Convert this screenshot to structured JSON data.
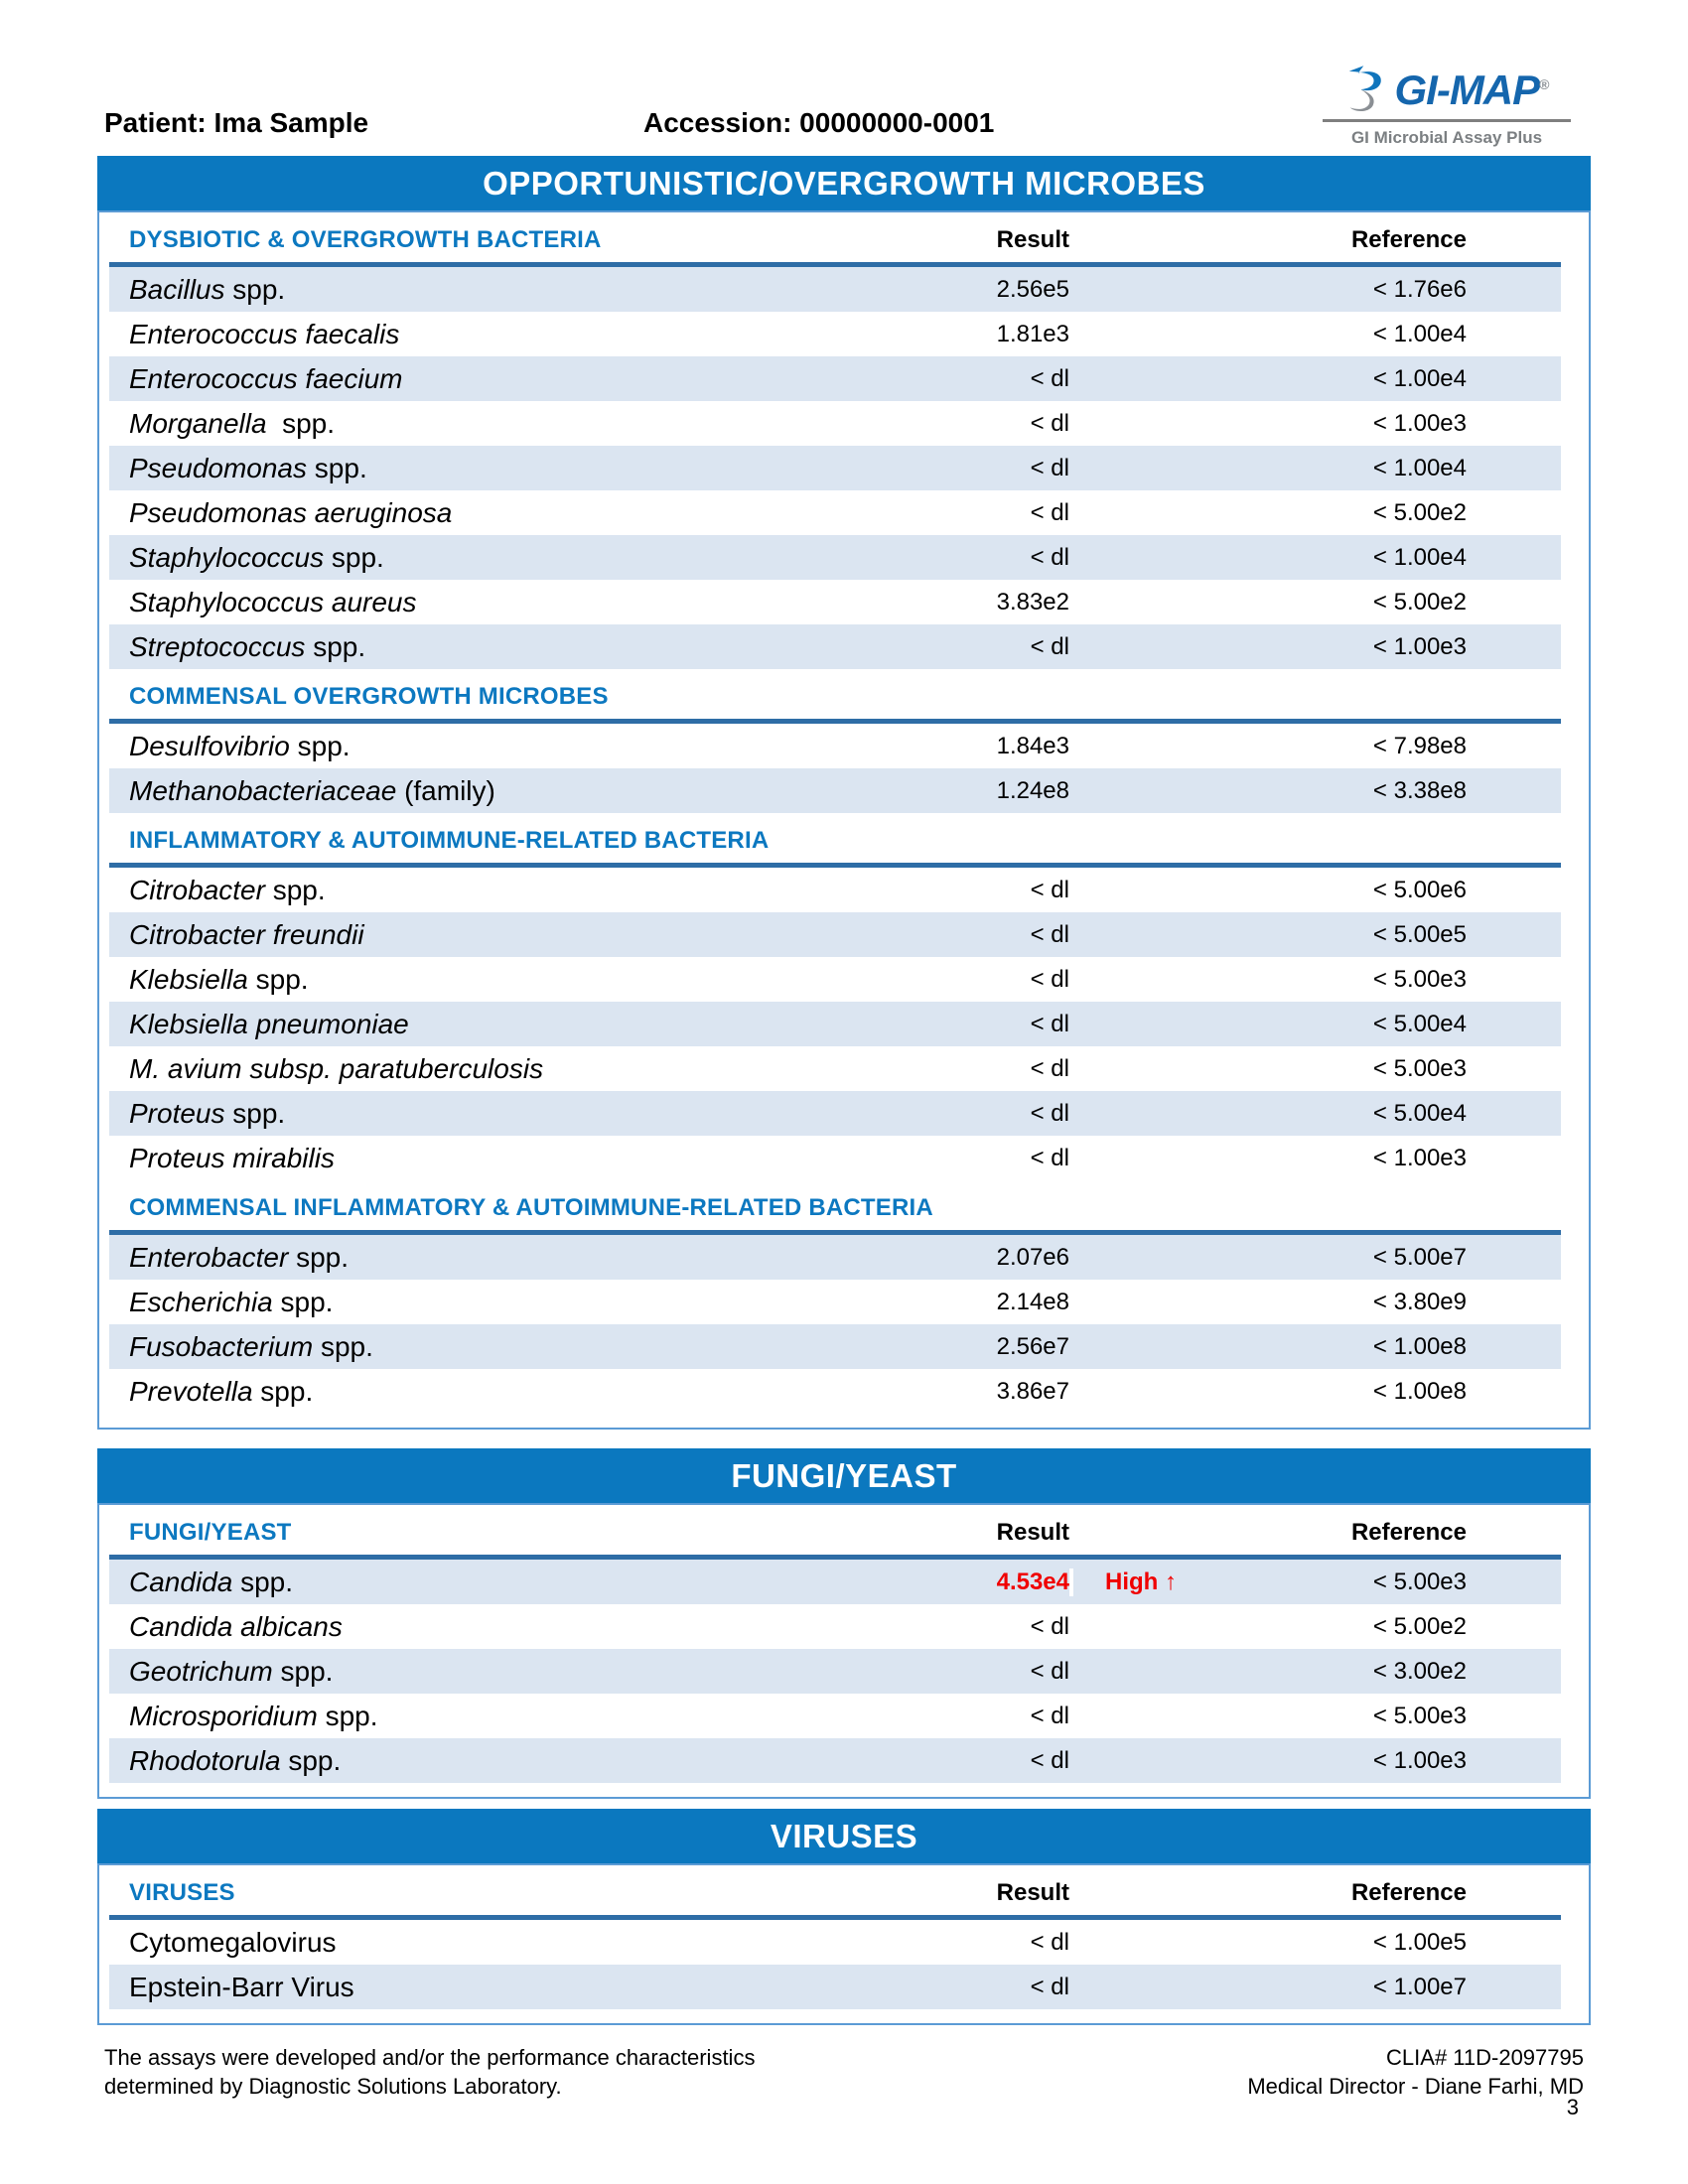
{
  "header": {
    "patient": "Patient: Ima Sample",
    "accession": "Accession: 00000000-0001"
  },
  "logo": {
    "brand": "GI-MAP",
    "reg": "®",
    "tagline": "GI Microbial Assay Plus"
  },
  "column_headers": {
    "result": "Result",
    "reference": "Reference"
  },
  "colors": {
    "banner_blue": "#0b78bf",
    "section_title_blue": "#0c78c0",
    "row_shade": "#dbe5f1",
    "divider_blue": "#2e6da6",
    "table_border_blue": "#5b9bd5",
    "flag_red": "#f00000",
    "logo_blue": "#1566ad",
    "logo_gray": "#7b7f82"
  },
  "sections": [
    {
      "id": "opportunistic",
      "banner": "OPPORTUNISTIC/OVERGROWTH MICROBES",
      "groups": [
        {
          "title": "DYSBIOTIC & OVERGROWTH BACTERIA",
          "show_columns": true,
          "rows": [
            {
              "italic": "Bacillus",
              "roman": " spp.",
              "result": "2.56e5",
              "flag": "",
              "reference": "< 1.76e6",
              "shaded": true
            },
            {
              "italic": "Enterococcus faecalis",
              "roman": "",
              "result": "1.81e3",
              "flag": "",
              "reference": "< 1.00e4",
              "shaded": false
            },
            {
              "italic": "Enterococcus faecium",
              "roman": "",
              "result": "< dl",
              "flag": "",
              "reference": "< 1.00e4",
              "shaded": true
            },
            {
              "italic": "Morganella",
              "roman": "  spp.",
              "result": "< dl",
              "flag": "",
              "reference": "< 1.00e3",
              "shaded": false
            },
            {
              "italic": "Pseudomonas",
              "roman": " spp.",
              "result": "< dl",
              "flag": "",
              "reference": "< 1.00e4",
              "shaded": true
            },
            {
              "italic": "Pseudomonas aeruginosa",
              "roman": "",
              "result": "< dl",
              "flag": "",
              "reference": "< 5.00e2",
              "shaded": false
            },
            {
              "italic": "Staphylococcus",
              "roman": " spp.",
              "result": "< dl",
              "flag": "",
              "reference": "< 1.00e4",
              "shaded": true
            },
            {
              "italic": "Staphylococcus aureus",
              "roman": "",
              "result": "3.83e2",
              "flag": "",
              "reference": "< 5.00e2",
              "shaded": false
            },
            {
              "italic": "Streptococcus",
              "roman": " spp.",
              "result": "< dl",
              "flag": "",
              "reference": "< 1.00e3",
              "shaded": true
            }
          ]
        },
        {
          "title": "COMMENSAL OVERGROWTH MICROBES",
          "show_columns": false,
          "rows": [
            {
              "italic": "Desulfovibrio",
              "roman": " spp.",
              "result": "1.84e3",
              "flag": "",
              "reference": "< 7.98e8",
              "shaded": false
            },
            {
              "italic": "Methanobacteriaceae",
              "roman": " (family)",
              "result": "1.24e8",
              "flag": "",
              "reference": "< 3.38e8",
              "shaded": true
            }
          ]
        },
        {
          "title": "INFLAMMATORY & AUTOIMMUNE-RELATED BACTERIA",
          "show_columns": false,
          "rows": [
            {
              "italic": "Citrobacter",
              "roman": " spp.",
              "result": "< dl",
              "flag": "",
              "reference": "< 5.00e6",
              "shaded": false
            },
            {
              "italic": "Citrobacter freundii",
              "roman": "",
              "result": "< dl",
              "flag": "",
              "reference": "< 5.00e5",
              "shaded": true
            },
            {
              "italic": "Klebsiella",
              "roman": " spp.",
              "result": "< dl",
              "flag": "",
              "reference": "< 5.00e3",
              "shaded": false
            },
            {
              "italic": "Klebsiella pneumoniae",
              "roman": "",
              "result": "< dl",
              "flag": "",
              "reference": "< 5.00e4",
              "shaded": true
            },
            {
              "italic": "M. avium subsp. paratuberculosis",
              "roman": "",
              "result": "< dl",
              "flag": "",
              "reference": "< 5.00e3",
              "shaded": false
            },
            {
              "italic": "Proteus",
              "roman": " spp.",
              "result": "< dl",
              "flag": "",
              "reference": "< 5.00e4",
              "shaded": true
            },
            {
              "italic": "Proteus mirabilis",
              "roman": "",
              "result": "< dl",
              "flag": "",
              "reference": "< 1.00e3",
              "shaded": false
            }
          ]
        },
        {
          "title": "COMMENSAL INFLAMMATORY & AUTOIMMUNE-RELATED BACTERIA",
          "show_columns": false,
          "rows": [
            {
              "italic": "Enterobacter",
              "roman": " spp.",
              "result": "2.07e6",
              "flag": "",
              "reference": "< 5.00e7",
              "shaded": true
            },
            {
              "italic": "Escherichia",
              "roman": " spp.",
              "result": "2.14e8",
              "flag": "",
              "reference": "< 3.80e9",
              "shaded": false
            },
            {
              "italic": "Fusobacterium",
              "roman": " spp.",
              "result": "2.56e7",
              "flag": "",
              "reference": "< 1.00e8",
              "shaded": true
            },
            {
              "italic": "Prevotella",
              "roman": " spp.",
              "result": "3.86e7",
              "flag": "",
              "reference": "< 1.00e8",
              "shaded": false
            }
          ]
        }
      ]
    },
    {
      "id": "fungi",
      "banner": "FUNGI/YEAST",
      "groups": [
        {
          "title": "FUNGI/YEAST",
          "show_columns": true,
          "rows": [
            {
              "italic": "Candida",
              "roman": " spp.",
              "result": "4.53e4",
              "flag": "High ↑",
              "reference": "< 5.00e3",
              "shaded": true,
              "abnormal": true
            },
            {
              "italic": "Candida albicans",
              "roman": "",
              "result": "< dl",
              "flag": "",
              "reference": "< 5.00e2",
              "shaded": false
            },
            {
              "italic": "Geotrichum",
              "roman": " spp.",
              "result": "< dl",
              "flag": "",
              "reference": "< 3.00e2",
              "shaded": true
            },
            {
              "italic": "Microsporidium",
              "roman": " spp.",
              "result": "< dl",
              "flag": "",
              "reference": "< 5.00e3",
              "shaded": false
            },
            {
              "italic": "Rhodotorula",
              "roman": " spp.",
              "result": "< dl",
              "flag": "",
              "reference": "< 1.00e3",
              "shaded": true
            }
          ]
        }
      ]
    },
    {
      "id": "viruses",
      "banner": "VIRUSES",
      "groups": [
        {
          "title": "VIRUSES",
          "show_columns": true,
          "rows": [
            {
              "italic": "",
              "roman": "Cytomegalovirus",
              "result": "< dl",
              "flag": "",
              "reference": "< 1.00e5",
              "shaded": false
            },
            {
              "italic": "",
              "roman": "Epstein-Barr Virus",
              "result": "< dl",
              "flag": "",
              "reference": "< 1.00e7",
              "shaded": true
            }
          ]
        }
      ]
    }
  ],
  "footer": {
    "left_line1": "The assays were developed and/or the performance characteristics",
    "left_line2": "determined by Diagnostic Solutions Laboratory.",
    "clia": "CLIA# 11D-2097795",
    "medical_director": "Medical Director - Diane Farhi, MD",
    "page_number": "3"
  }
}
